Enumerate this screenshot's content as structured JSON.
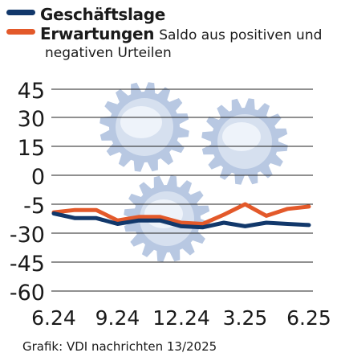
{
  "legend": {
    "series1": "Geschäftslage",
    "series2": "Erwartungen",
    "note": "Saldo aus positiven und",
    "note2": "negativen Urteilen"
  },
  "source": "Grafik: VDI nachrichten 13/2025",
  "colors": {
    "geschaeftslage": "#12386b",
    "erwartungen": "#e3592a",
    "gridline": "#222222",
    "gear": "#b8c8e2"
  },
  "chart_data": {
    "type": "line",
    "x": [
      "6.24",
      "7.24",
      "8.24",
      "9.24",
      "10.24",
      "11.24",
      "12.24",
      "1.25",
      "2.25",
      "3.25",
      "4.25",
      "5.25",
      "6.25"
    ],
    "x_tick_labels": [
      "6.24",
      "9.24",
      "12.24",
      "3.25",
      "6.25"
    ],
    "y_ticks": [
      45,
      30,
      15,
      0,
      -5,
      -30,
      -45,
      -60
    ],
    "ylim": [
      -60,
      45
    ],
    "grid": true,
    "series": [
      {
        "name": "Geschäftslage",
        "values": [
          -13,
          -17,
          -17,
          -22,
          -19,
          -19,
          -24,
          -25,
          -21,
          -24,
          -21,
          -22,
          -23
        ]
      },
      {
        "name": "Erwartungen",
        "values": [
          -12,
          -10,
          -10,
          -19,
          -16,
          -16,
          -21,
          -22,
          -14,
          -5,
          -15,
          -9,
          -7
        ]
      }
    ]
  }
}
